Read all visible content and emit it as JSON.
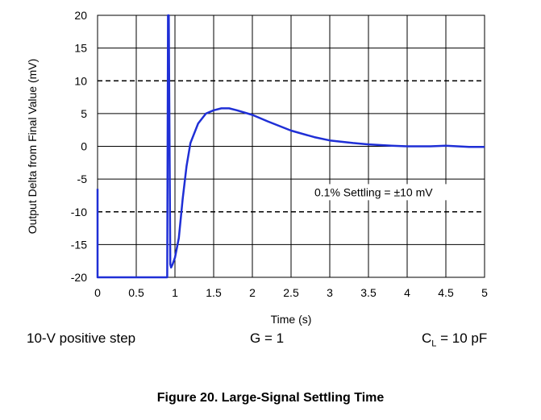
{
  "chart_data": {
    "type": "line",
    "xlabel": "Time (s)",
    "ylabel": "Output Delta from Final Value (mV)",
    "xlim": [
      0,
      5
    ],
    "ylim": [
      -20,
      20
    ],
    "x_ticks": [
      "0",
      "0.5",
      "1",
      "1.5",
      "2",
      "2.5",
      "3",
      "3.5",
      "4",
      "4.5",
      "5"
    ],
    "y_ticks": [
      "20",
      "15",
      "10",
      "5",
      "0",
      "-5",
      "-10",
      "-15",
      "-20"
    ],
    "grid": true,
    "reference_lines": [
      {
        "y": 10,
        "style": "dashed"
      },
      {
        "y": -10,
        "style": "dashed"
      }
    ],
    "annotation": "0.1% Settling = ±10 mV",
    "series": [
      {
        "color": "#1f2fd6",
        "x": [
          0,
          0,
          0.9,
          0.91,
          0.92,
          0.94,
          0.95,
          0.97,
          1.0,
          1.05,
          1.1,
          1.15,
          1.2,
          1.3,
          1.4,
          1.5,
          1.6,
          1.7,
          1.8,
          2.0,
          2.2,
          2.5,
          2.8,
          3.0,
          3.3,
          3.5,
          3.8,
          4.0,
          4.3,
          4.5,
          4.8,
          5.0
        ],
        "y": [
          -6.5,
          -20,
          -20,
          20,
          20,
          -18,
          -18.5,
          -18,
          -17,
          -14,
          -8,
          -3,
          0.5,
          3.5,
          5.0,
          5.5,
          5.8,
          5.8,
          5.5,
          4.8,
          3.8,
          2.4,
          1.4,
          0.9,
          0.5,
          0.3,
          0.1,
          0.0,
          0.0,
          0.1,
          -0.1,
          -0.1
        ]
      }
    ]
  },
  "conditions": {
    "step": "10-V positive step",
    "gain": "G = 1",
    "load_prefix": "C",
    "load_sub": "L",
    "load_value": " = 10 pF"
  },
  "caption": "Figure 20. Large-Signal Settling Time"
}
